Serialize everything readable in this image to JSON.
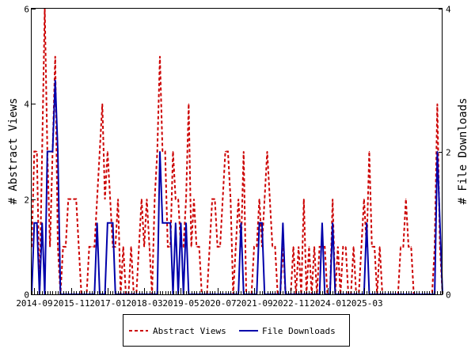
{
  "chart_data": {
    "type": "line",
    "xlabel": "",
    "y_left_label": "# Abstract Views",
    "y_right_label": "# File Downloads",
    "y_left_lim": [
      0,
      6
    ],
    "y_right_lim": [
      0,
      4
    ],
    "y_left_ticks": [
      0,
      2,
      4,
      6
    ],
    "y_right_ticks": [
      0,
      2,
      4
    ],
    "x_ticks": [
      "2014-09",
      "2015-11",
      "2017-01",
      "2018-03",
      "2019-05",
      "2020-07",
      "2021-09",
      "2022-11",
      "2024-01",
      "2025-03"
    ],
    "x_start": "2014-08",
    "x_end": "2025-08",
    "legend_position": "bottom",
    "grid": false,
    "series": [
      {
        "name": "Abstract Views",
        "axis": "left",
        "color": "#cc0000",
        "dash": "dashed",
        "values": [
          1,
          3,
          3,
          0,
          3,
          6,
          3,
          1,
          3,
          5,
          1,
          0,
          1,
          1,
          2,
          2,
          2,
          2,
          1,
          0,
          0,
          0,
          1,
          1,
          1,
          2,
          3,
          4,
          2,
          3,
          2,
          1,
          1,
          2,
          0,
          1,
          0,
          0,
          1,
          0,
          0,
          1,
          2,
          1,
          2,
          1,
          0,
          2,
          3,
          5,
          3,
          3,
          1,
          1,
          3,
          2,
          2,
          1,
          1,
          2,
          4,
          1,
          2,
          1,
          1,
          0,
          0,
          0,
          1,
          2,
          2,
          1,
          1,
          2,
          3,
          3,
          2,
          0,
          1,
          2,
          1,
          3,
          0,
          0,
          0,
          1,
          1,
          2,
          1,
          2,
          3,
          2,
          1,
          1,
          0,
          0,
          1,
          0,
          0,
          0,
          1,
          0,
          1,
          0,
          2,
          0,
          1,
          0,
          1,
          0,
          1,
          1,
          1,
          0,
          0,
          2,
          0,
          1,
          0,
          1,
          1,
          0,
          0,
          1,
          0,
          0,
          1,
          2,
          1,
          3,
          1,
          1,
          0,
          1,
          0,
          0,
          0,
          0,
          0,
          0,
          0,
          1,
          1,
          2,
          1,
          1,
          0,
          0,
          0,
          0,
          0,
          0,
          0,
          0,
          1,
          4,
          1,
          0
        ]
      },
      {
        "name": "File Downloads",
        "axis": "right",
        "color": "#0000aa",
        "dash": "solid",
        "values": [
          0,
          1,
          1,
          0,
          1,
          0,
          2,
          2,
          2,
          3,
          2,
          0,
          0,
          0,
          0,
          0,
          0,
          0,
          0,
          0,
          0,
          0,
          0,
          0,
          0,
          1,
          0,
          0,
          0,
          1,
          1,
          1,
          0,
          0,
          0,
          0,
          0,
          0,
          0,
          0,
          0,
          0,
          0,
          0,
          0,
          0,
          0,
          0,
          0,
          2,
          1,
          1,
          1,
          1,
          0,
          1,
          0,
          1,
          0,
          1,
          0,
          0,
          0,
          0,
          0,
          0,
          0,
          0,
          0,
          0,
          0,
          0,
          0,
          0,
          0,
          0,
          0,
          0,
          0,
          0,
          1,
          0,
          0,
          0,
          0,
          0,
          0,
          1,
          1,
          0,
          0,
          0,
          0,
          0,
          0,
          0,
          1,
          0,
          0,
          0,
          0,
          0,
          0,
          0,
          0,
          0,
          0,
          0,
          0,
          0,
          0,
          1,
          0,
          0,
          0,
          1,
          0,
          0,
          0,
          0,
          0,
          0,
          0,
          0,
          0,
          0,
          0,
          0,
          1,
          0,
          0,
          0,
          0,
          0,
          0,
          0,
          0,
          0,
          0,
          0,
          0,
          0,
          0,
          0,
          0,
          0,
          0,
          0,
          0,
          0,
          0,
          0,
          0,
          0,
          0,
          2,
          1,
          0
        ]
      }
    ]
  }
}
